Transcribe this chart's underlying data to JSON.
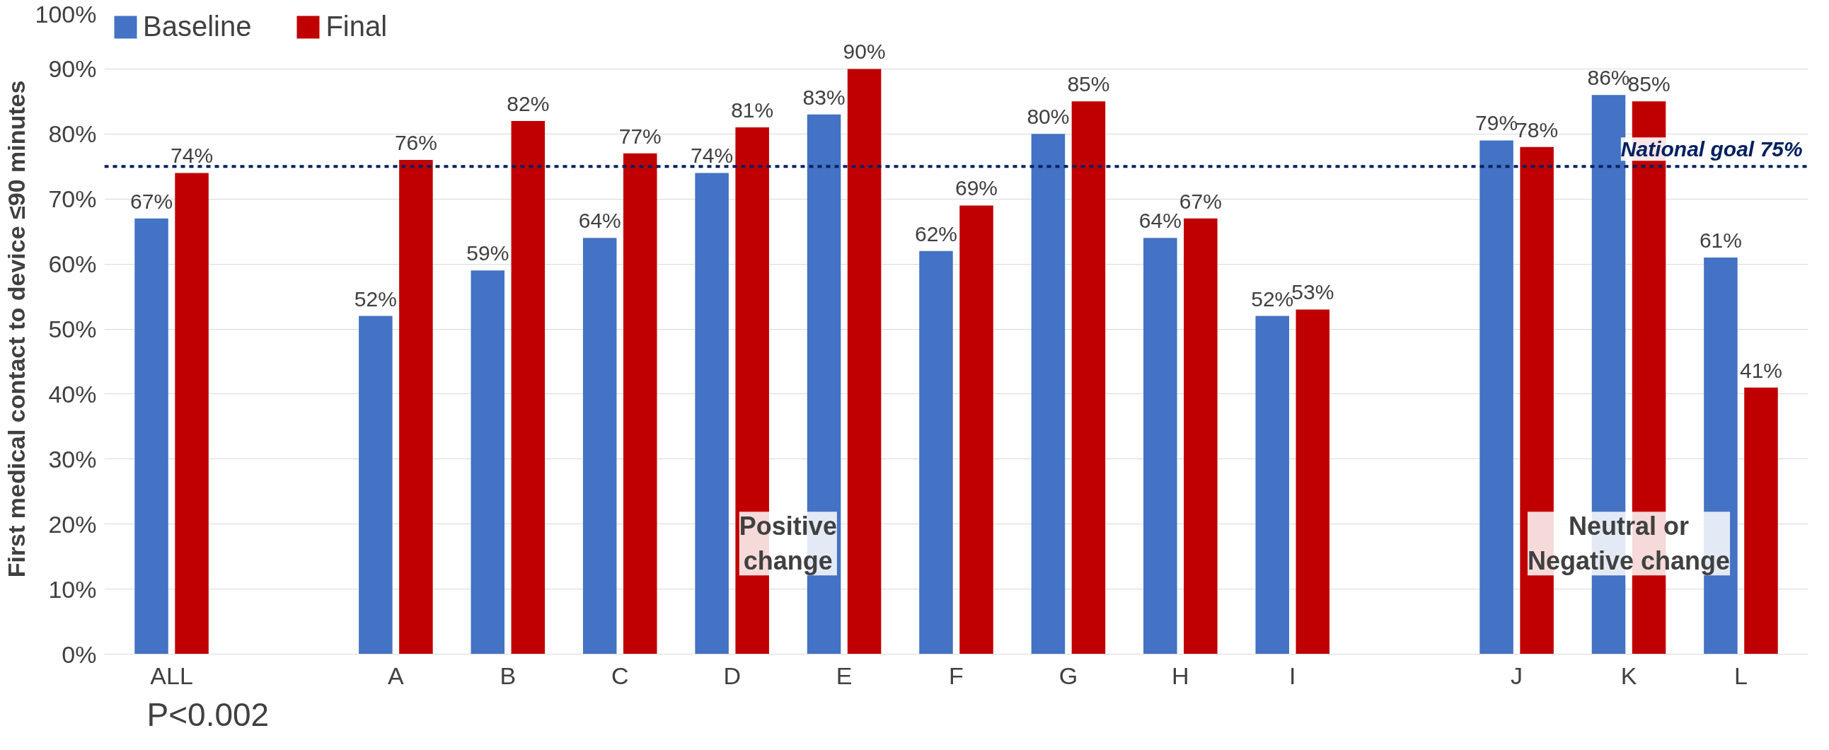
{
  "chart_data": {
    "type": "bar",
    "ylabel": "First medical contact to device ≤90 minutes",
    "categories": [
      "ALL",
      null,
      "A",
      "B",
      "C",
      "D",
      "E",
      "F",
      "G",
      "H",
      "I",
      null,
      "J",
      "K",
      "L"
    ],
    "series": [
      {
        "name": "Baseline",
        "color": "#4472c4",
        "values": [
          67,
          null,
          52,
          59,
          64,
          74,
          83,
          62,
          80,
          64,
          52,
          null,
          79,
          86,
          61
        ],
        "value_labels": [
          "67%",
          null,
          "52%",
          "59%",
          "64%",
          "74%",
          "83%",
          "62%",
          "80%",
          "64%",
          "52%",
          null,
          "79%",
          "86%",
          "61%"
        ]
      },
      {
        "name": "Final",
        "color": "#c00000",
        "values": [
          74,
          null,
          76,
          82,
          77,
          81,
          90,
          69,
          85,
          67,
          53,
          null,
          78,
          85,
          41
        ],
        "value_labels": [
          "74%",
          null,
          "76%",
          "82%",
          "77%",
          "81%",
          "90%",
          "69%",
          "85%",
          "67%",
          "53%",
          null,
          "78%",
          "85%",
          "41%"
        ]
      }
    ],
    "ylim": [
      0,
      100
    ],
    "yticks": [
      {
        "value": 0,
        "label": "0%"
      },
      {
        "value": 10,
        "label": "10%"
      },
      {
        "value": 20,
        "label": "20%"
      },
      {
        "value": 30,
        "label": "30%"
      },
      {
        "value": 40,
        "label": "40%"
      },
      {
        "value": 50,
        "label": "50%"
      },
      {
        "value": 60,
        "label": "60%"
      },
      {
        "value": 70,
        "label": "70%"
      },
      {
        "value": 80,
        "label": "80%"
      },
      {
        "value": 90,
        "label": "90%"
      },
      {
        "value": 100,
        "label": "100%"
      }
    ],
    "ref_lines": [
      {
        "axis": "y",
        "value": 75,
        "label": "National goal 75%",
        "color": "#002060",
        "line_style": "dashed"
      }
    ],
    "annotations": [
      "Positive change",
      "Neutral or Negative change",
      "P<0.002"
    ],
    "grid": "y",
    "legend": "top left"
  }
}
